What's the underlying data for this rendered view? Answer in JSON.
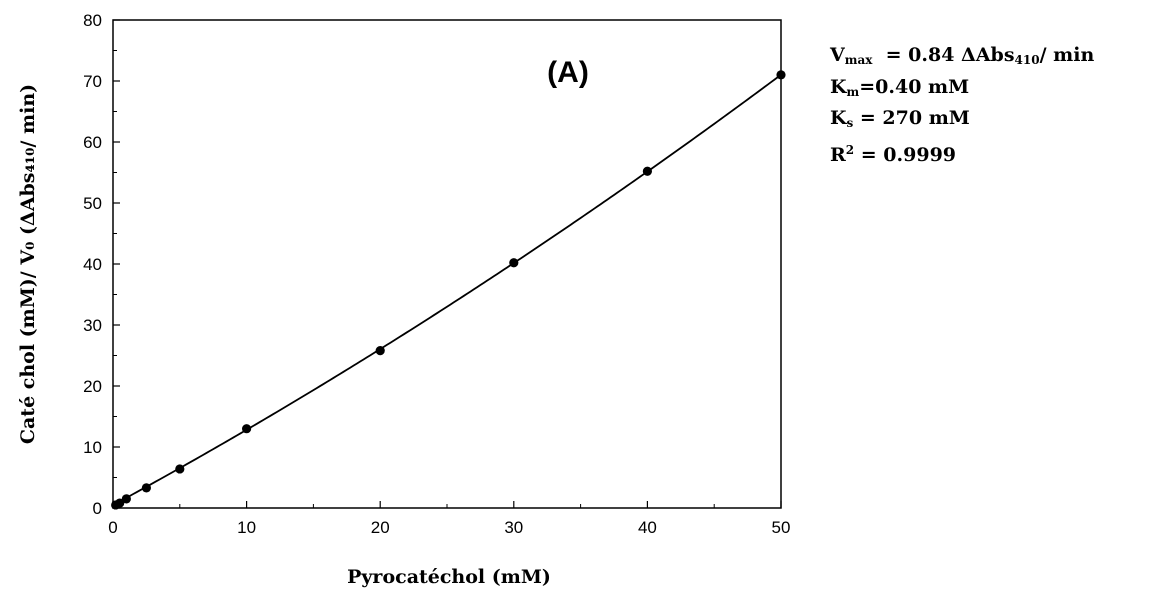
{
  "chart_data": {
    "type": "scatter",
    "panel_label": "(A)",
    "xlabel": "Pyrocatéchol (mM)",
    "ylabel": "Caté chol (mM)/ V₀ (ΔAbs₄₁₀/ min)",
    "xlim": [
      0,
      50
    ],
    "ylim": [
      0,
      80
    ],
    "xticks": [
      0,
      10,
      20,
      30,
      40,
      50
    ],
    "yticks": [
      0,
      10,
      20,
      30,
      40,
      50,
      60,
      70,
      80
    ],
    "series": [
      {
        "points": [
          {
            "x": 0.2,
            "y": 0.5
          },
          {
            "x": 0.5,
            "y": 0.8
          },
          {
            "x": 1,
            "y": 1.5
          },
          {
            "x": 2.5,
            "y": 3.3
          },
          {
            "x": 5,
            "y": 6.4
          },
          {
            "x": 10,
            "y": 13
          },
          {
            "x": 20,
            "y": 25.8
          },
          {
            "x": 30,
            "y": 40.2
          },
          {
            "x": 40,
            "y": 55.2
          },
          {
            "x": 50,
            "y": 71
          }
        ]
      }
    ],
    "fit": {
      "Vmax": 0.84,
      "Km": 0.4,
      "Ks": 270,
      "R2": 0.9999
    },
    "fit_text": {
      "vmax_symbol": "V",
      "vmax_sub": "max",
      "vmax_rest": "= 0.84 ΔAbs",
      "vmax_unit_sub": "410",
      "vmax_unit_tail": "/ min",
      "km_symbol": "K",
      "km_sub": "m",
      "km_rest": "=0.40 mM",
      "ks_symbol": "K",
      "ks_sub": "s",
      "ks_rest": " = 270 mM",
      "r2_symbol": "R",
      "r2_sup": "2",
      "r2_rest": " = 0.9999"
    },
    "grid": false,
    "colors": {
      "marker": "#000000",
      "line": "#000000"
    }
  }
}
